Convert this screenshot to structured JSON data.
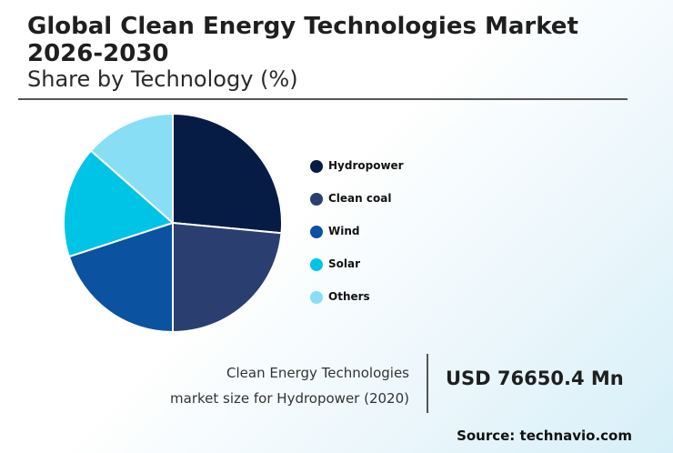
{
  "title": "Global Clean Energy Technologies Market 2026-2030",
  "subtitle": "Share by Technology (%)",
  "chart_data": {
    "type": "pie",
    "categories": [
      "Hydropower",
      "Clean coal",
      "Wind",
      "Solar",
      "Others"
    ],
    "values": [
      26.5,
      23.5,
      20,
      16.5,
      13.5
    ],
    "colors": [
      "#071c45",
      "#2a3f6f",
      "#0b52a0",
      "#00c4e6",
      "#88def4"
    ],
    "legend_position": "right"
  },
  "caption": {
    "line1": "Clean Energy Technologies",
    "line2": "market size for Hydropower (2020)"
  },
  "market_value": "USD 76650.4 Mn",
  "source": "Source: technavio.com"
}
